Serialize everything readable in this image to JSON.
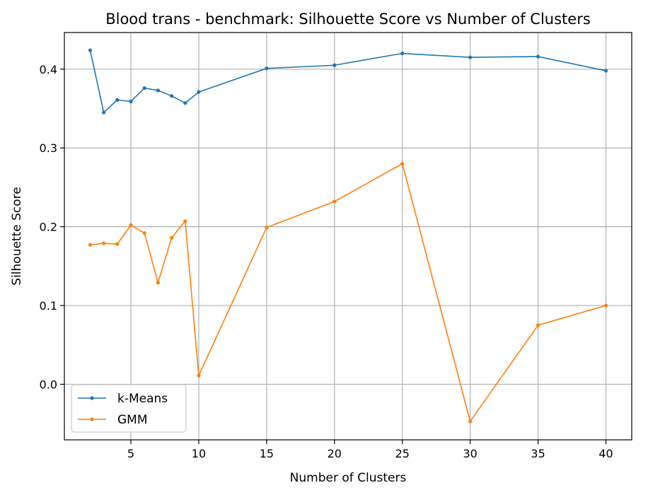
{
  "chart_data": {
    "type": "line",
    "title": "Blood trans - benchmark: Silhouette Score vs Number of Clusters",
    "xlabel": "Number of Clusters",
    "ylabel": "Silhouette Score",
    "x": [
      2,
      3,
      4,
      5,
      6,
      7,
      8,
      9,
      10,
      15,
      20,
      25,
      30,
      35,
      40
    ],
    "xticks": [
      5,
      10,
      15,
      20,
      25,
      30,
      35,
      40
    ],
    "yticks": [
      0.0,
      0.1,
      0.2,
      0.3,
      0.4
    ],
    "ytick_labels": [
      "0.0",
      "0.1",
      "0.2",
      "0.3",
      "0.4"
    ],
    "xlim": [
      0.1,
      41.9
    ],
    "ylim": [
      -0.0705,
      0.4465
    ],
    "grid": true,
    "legend_position": "lower-left",
    "series": [
      {
        "name": "k-Means",
        "color": "#1f77b4",
        "values": [
          0.424,
          0.345,
          0.361,
          0.359,
          0.376,
          0.373,
          0.366,
          0.357,
          0.371,
          0.401,
          0.405,
          0.42,
          0.415,
          0.416,
          0.398
        ]
      },
      {
        "name": "GMM",
        "color": "#ff7f0e",
        "values": [
          0.177,
          0.179,
          0.178,
          0.202,
          0.192,
          0.129,
          0.186,
          0.207,
          0.011,
          0.199,
          0.232,
          0.28,
          -0.047,
          0.075,
          0.1
        ]
      }
    ]
  }
}
